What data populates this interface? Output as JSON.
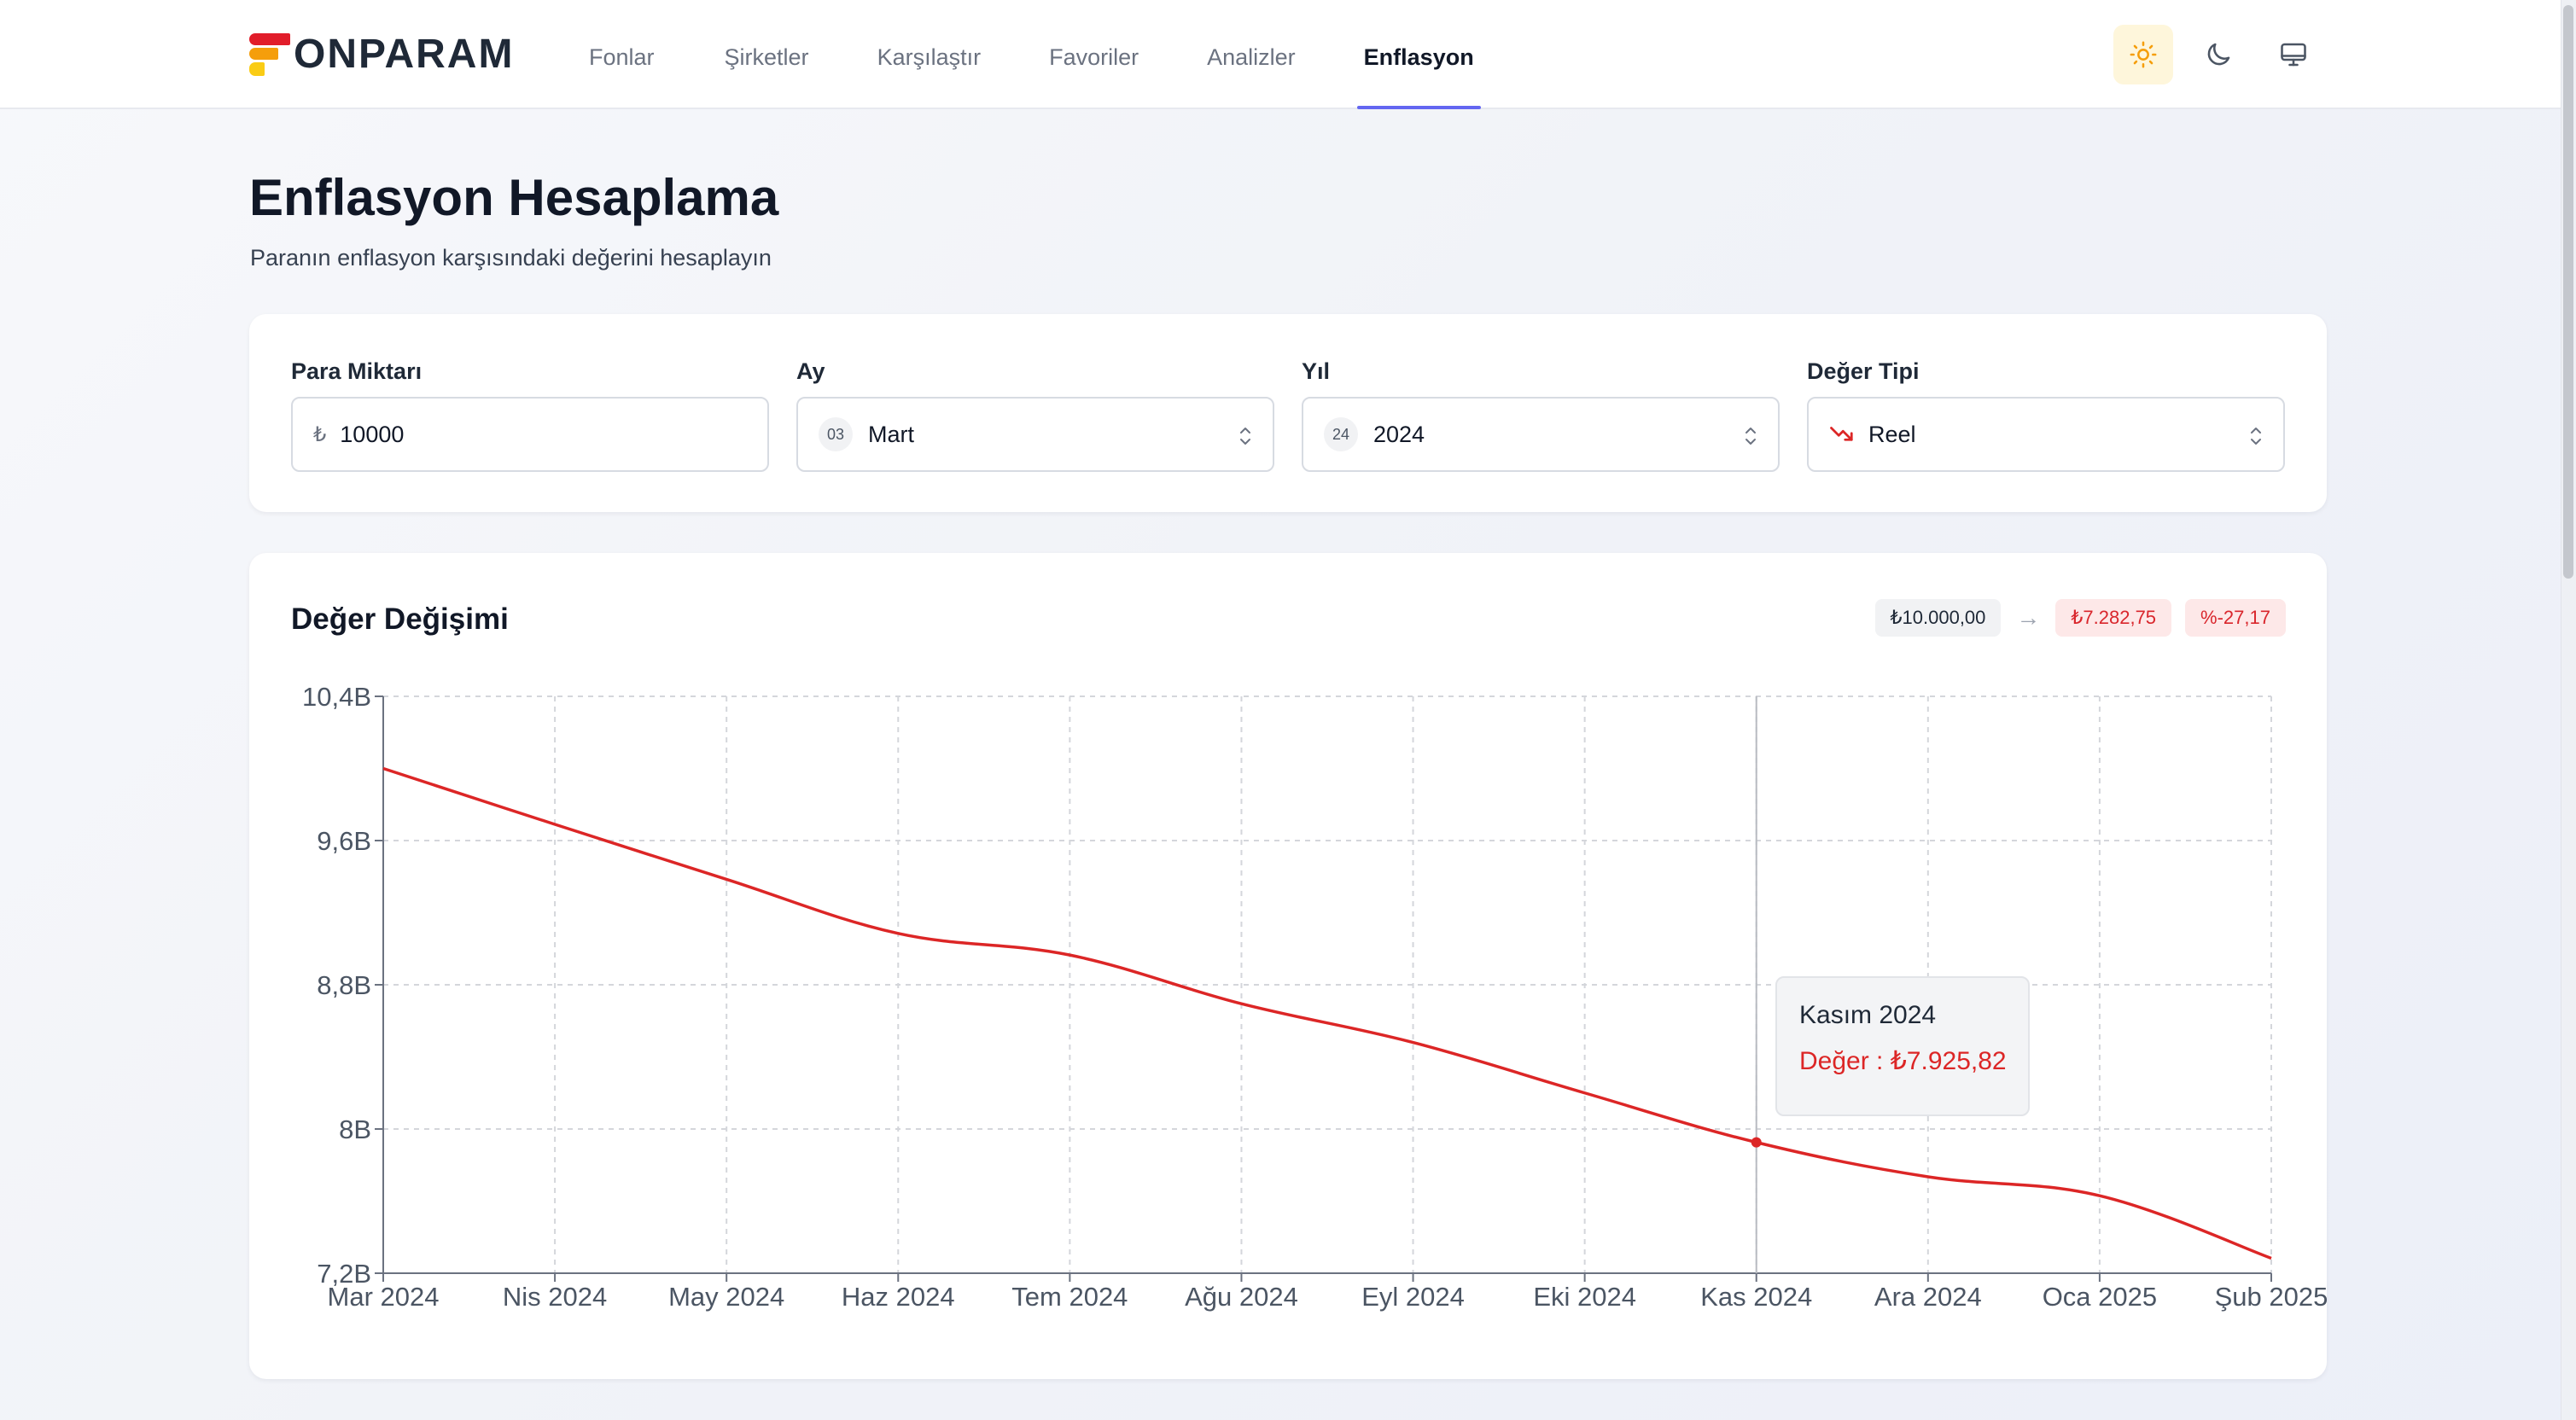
{
  "brand": {
    "name": "ONPARAM"
  },
  "nav": {
    "items": [
      {
        "label": "Fonlar",
        "active": false
      },
      {
        "label": "Şirketler",
        "active": false
      },
      {
        "label": "Karşılaştır",
        "active": false
      },
      {
        "label": "Favoriler",
        "active": false
      },
      {
        "label": "Analizler",
        "active": false
      },
      {
        "label": "Enflasyon",
        "active": true
      }
    ]
  },
  "theme": {
    "buttons": [
      "sun-icon",
      "moon-icon",
      "monitor-icon"
    ],
    "active": "sun-icon",
    "active_color": "#f59e0b"
  },
  "page": {
    "title": "Enflasyon Hesaplama",
    "subtitle": "Paranın enflasyon karşısındaki değerini hesaplayın"
  },
  "form": {
    "amount": {
      "label": "Para Miktarı",
      "prefix": "₺",
      "value": "10000"
    },
    "month": {
      "label": "Ay",
      "badge": "03",
      "value": "Mart"
    },
    "year": {
      "label": "Yıl",
      "badge": "24",
      "value": "2024"
    },
    "value_type": {
      "label": "Değer Tipi",
      "icon": "trend-down-icon",
      "value": "Reel"
    }
  },
  "chart_card": {
    "title": "Değer Değişimi",
    "start_value": "₺10.000,00",
    "arrow": "→",
    "end_value": "₺7.282,75",
    "change": "%-27,17"
  },
  "tooltip": {
    "label": "Kasım 2024",
    "value": "Değer : ₺7.925,82"
  },
  "chart_data": {
    "type": "line",
    "categories": [
      "Mar 2024",
      "Nis 2024",
      "May 2024",
      "Haz 2024",
      "Tem 2024",
      "Ağu 2024",
      "Eyl 2024",
      "Eki 2024",
      "Kas 2024",
      "Ara 2024",
      "Oca 2025",
      "Şub 2025"
    ],
    "series": [
      {
        "values": [
          10000,
          9690,
          9385,
          9085,
          8965,
          8695,
          8480,
          8200,
          7926,
          7735,
          7630,
          7283
        ],
        "color": "#dc2626"
      }
    ],
    "y_ticks": [
      "7,2B",
      "8B",
      "8,8B",
      "9,6B",
      "10,4B"
    ],
    "ylim": [
      7200,
      10400
    ],
    "grid": true,
    "highlight_index": 8
  }
}
